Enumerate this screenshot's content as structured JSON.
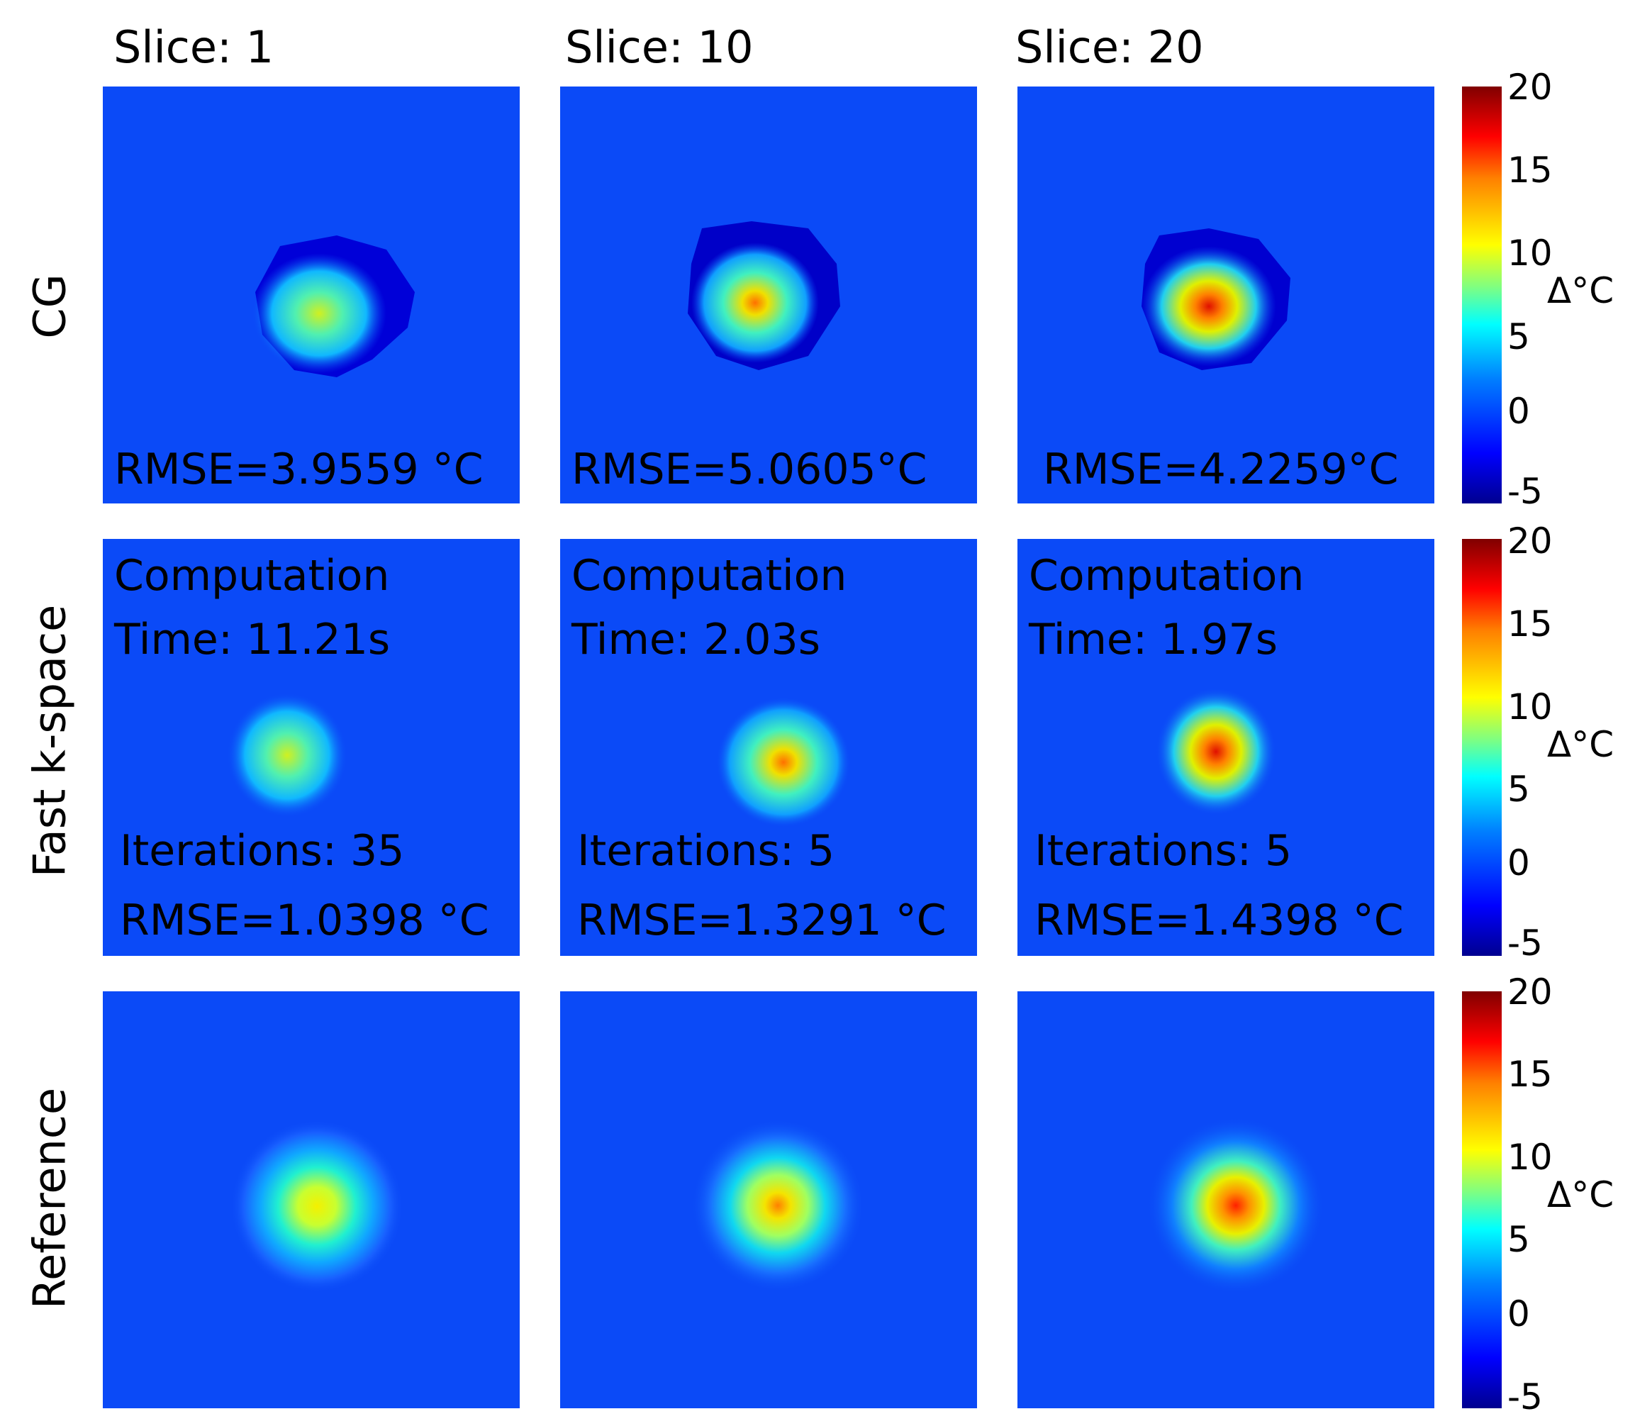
{
  "chart_data": {
    "type": "heatmap",
    "columns": [
      "Slice: 1",
      "Slice: 10",
      "Slice: 20"
    ],
    "rows": [
      "CG",
      "Fast k-space",
      "Reference"
    ],
    "colorbar": {
      "label": "Δ°C",
      "ticks": [
        "20",
        "15",
        "10",
        "5",
        "0",
        "-5"
      ],
      "range": [
        -5,
        20
      ]
    },
    "peak_temperature_estimates": [
      [
        8,
        12,
        17
      ],
      [
        9,
        12,
        16
      ],
      [
        11,
        14,
        17
      ]
    ],
    "panels": {
      "cg": [
        {
          "rmse": "RMSE=3.9559 °C"
        },
        {
          "rmse": "RMSE=5.0605°C"
        },
        {
          "rmse": "RMSE=4.2259°C"
        }
      ],
      "fast": [
        {
          "comp1": "Computation",
          "comp2": "Time: 11.21s",
          "iter": "Iterations: 35",
          "rmse": "RMSE=1.0398 °C"
        },
        {
          "comp1": "Computation",
          "comp2": "Time: 2.03s",
          "iter": "Iterations: 5",
          "rmse": "RMSE=1.3291 °C"
        },
        {
          "comp1": "Computation",
          "comp2": "Time: 1.97s",
          "iter": "Iterations: 5",
          "rmse": "RMSE=1.4398 °C"
        }
      ]
    }
  },
  "colors": {
    "background_blue": "#0b4af7"
  }
}
